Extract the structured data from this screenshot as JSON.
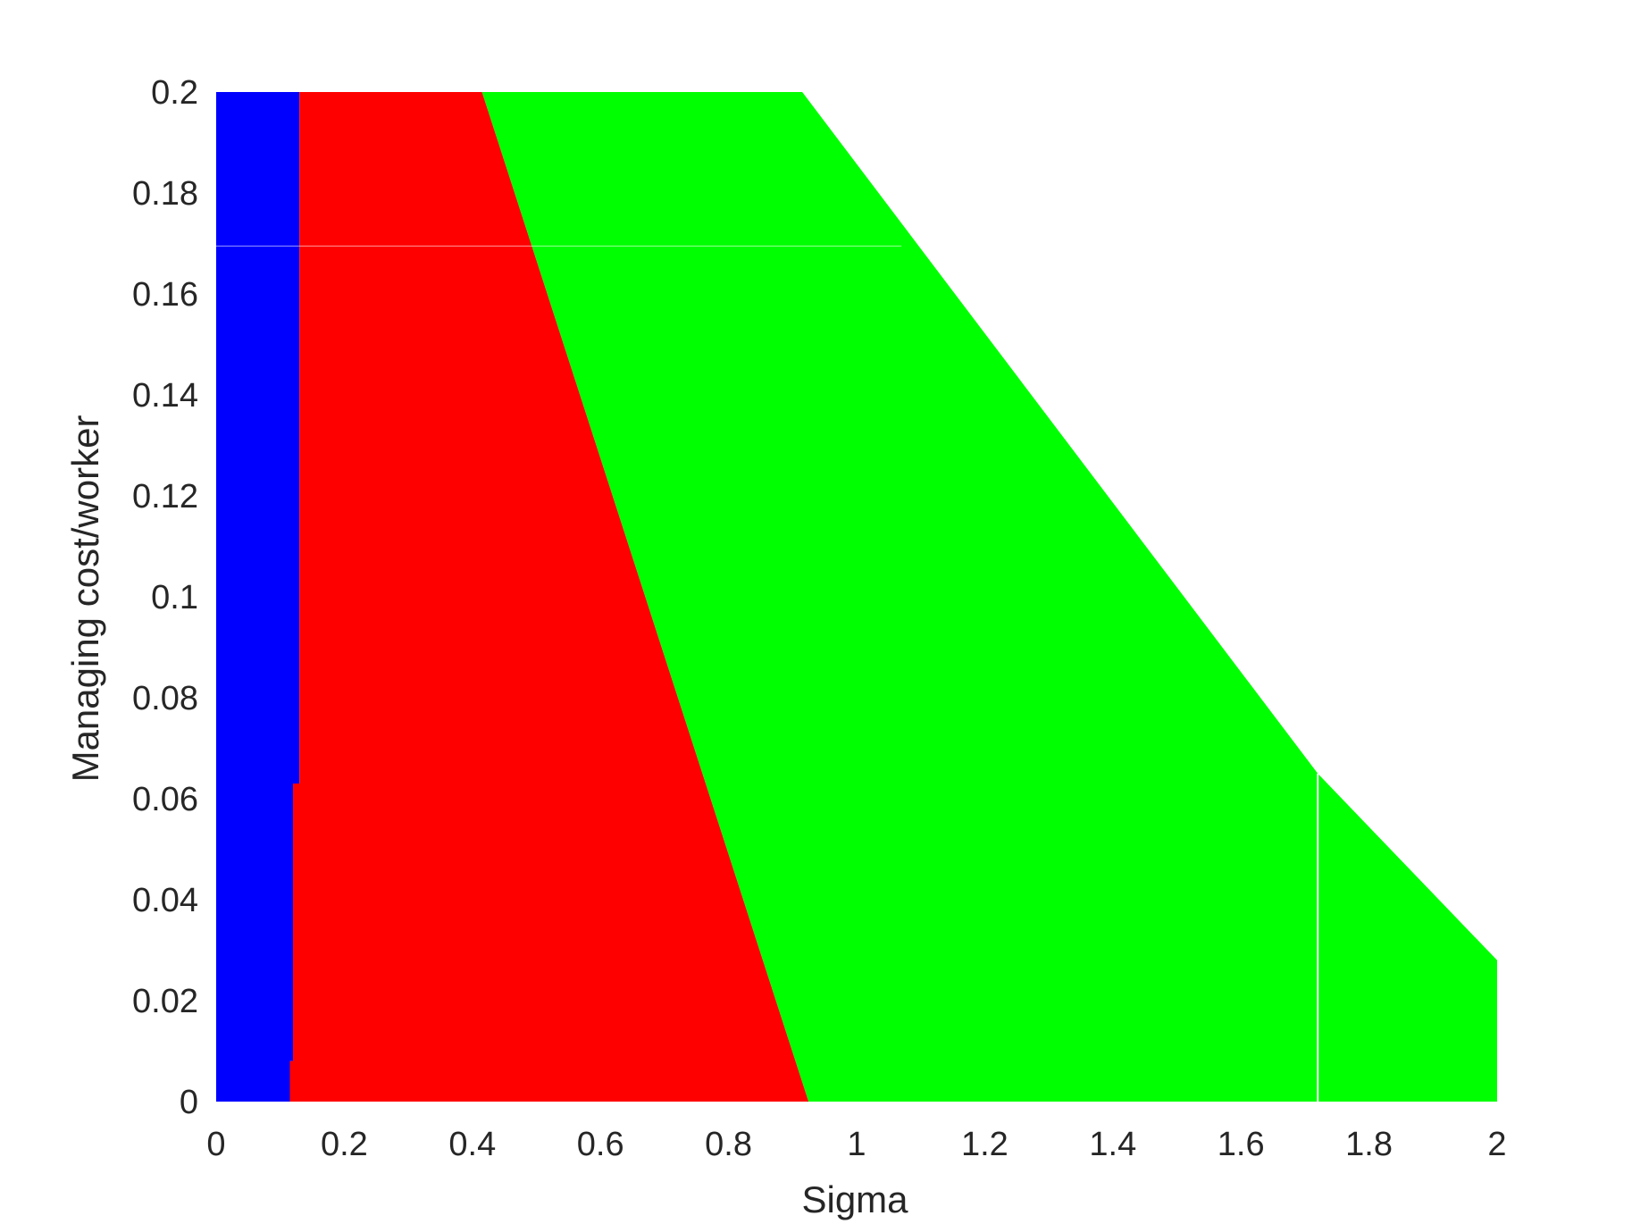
{
  "chart_data": {
    "type": "area",
    "title": "",
    "xlabel": "Sigma",
    "ylabel": "Managing cost/worker",
    "xlim": [
      0,
      2
    ],
    "ylim": [
      0,
      0.2
    ],
    "xticks": [
      0,
      0.2,
      0.4,
      0.6,
      0.8,
      1,
      1.2,
      1.4,
      1.6,
      1.8,
      2
    ],
    "xtick_labels": [
      "0",
      "0.2",
      "0.4",
      "0.6",
      "0.8",
      "1",
      "1.2",
      "1.4",
      "1.6",
      "1.8",
      "2"
    ],
    "yticks": [
      0,
      0.02,
      0.04,
      0.06,
      0.08,
      0.1,
      0.12,
      0.14,
      0.16,
      0.18,
      0.2
    ],
    "ytick_labels": [
      "0",
      "0.02",
      "0.04",
      "0.06",
      "0.08",
      "0.1",
      "0.12",
      "0.14",
      "0.16",
      "0.18",
      "0.2"
    ],
    "grid": false,
    "legend": "none",
    "regions": [
      {
        "color": "#0000ff",
        "polygon": [
          [
            0.0,
            0.0
          ],
          [
            0.115,
            0.0
          ],
          [
            0.115,
            0.008
          ],
          [
            0.12,
            0.008
          ],
          [
            0.12,
            0.063
          ],
          [
            0.13,
            0.063
          ],
          [
            0.13,
            0.2
          ],
          [
            0.0,
            0.2
          ]
        ]
      },
      {
        "color": "#ff0000",
        "polygon": [
          [
            0.115,
            0.0
          ],
          [
            0.925,
            0.0
          ],
          [
            0.415,
            0.2
          ],
          [
            0.13,
            0.2
          ],
          [
            0.13,
            0.063
          ],
          [
            0.12,
            0.063
          ],
          [
            0.12,
            0.008
          ],
          [
            0.115,
            0.008
          ]
        ]
      },
      {
        "color": "#00ff00",
        "polygon": [
          [
            0.925,
            0.0
          ],
          [
            2.0,
            0.0
          ],
          [
            2.0,
            0.028
          ],
          [
            1.72,
            0.065
          ],
          [
            0.915,
            0.2
          ],
          [
            0.415,
            0.2
          ]
        ]
      }
    ],
    "gaps": [
      {
        "orientation": "vertical",
        "x": 1.72,
        "y_range": [
          0,
          0.065
        ]
      },
      {
        "orientation": "horizontal",
        "y": 0.1695,
        "x_range": [
          0,
          1.07
        ]
      }
    ]
  }
}
